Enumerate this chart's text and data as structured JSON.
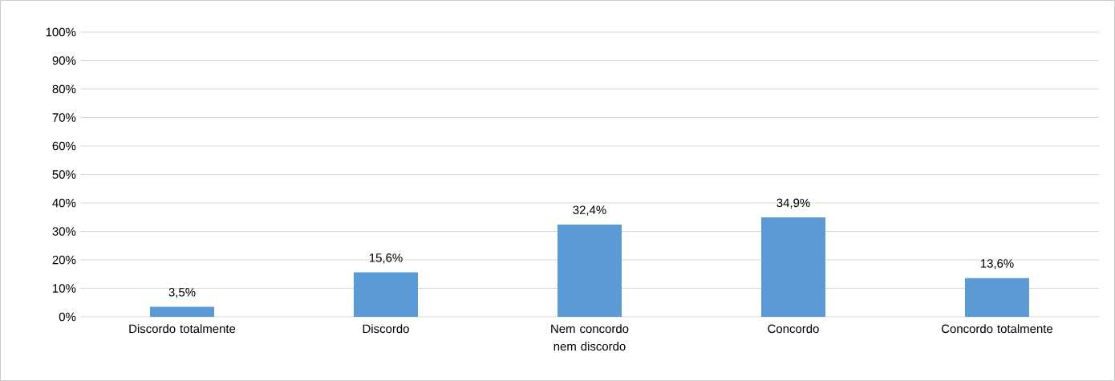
{
  "chart_data": {
    "type": "bar",
    "categories": [
      "Discordo totalmente",
      "Discordo",
      "Nem concordo nem discordo",
      "Concordo",
      "Concordo totalmente"
    ],
    "values": [
      3.5,
      15.6,
      32.4,
      34.9,
      13.6
    ],
    "value_labels": [
      "3,5%",
      "15,6%",
      "32,4%",
      "34,9%",
      "13,6%"
    ],
    "color": "#5b9bd5",
    "ylim": [
      0,
      100
    ],
    "yticks": [
      {
        "value": 0,
        "label": "0%"
      },
      {
        "value": 10,
        "label": "10%"
      },
      {
        "value": 20,
        "label": "20%"
      },
      {
        "value": 30,
        "label": "30%"
      },
      {
        "value": 40,
        "label": "40%"
      },
      {
        "value": 50,
        "label": "50%"
      },
      {
        "value": 60,
        "label": "60%"
      },
      {
        "value": 70,
        "label": "70%"
      },
      {
        "value": 80,
        "label": "80%"
      },
      {
        "value": 90,
        "label": "90%"
      },
      {
        "value": 100,
        "label": "100%"
      }
    ],
    "grid": "y"
  }
}
